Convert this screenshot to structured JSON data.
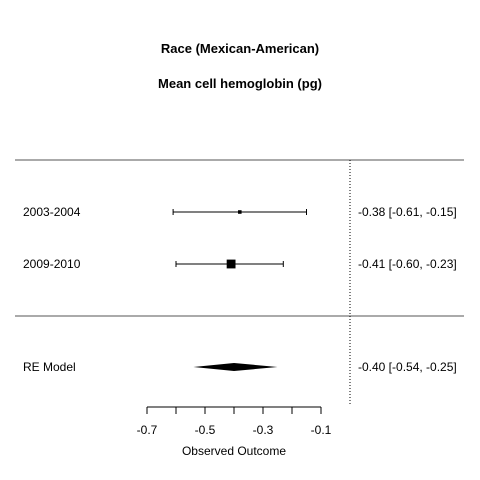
{
  "chart_data": {
    "type": "forest",
    "title": "Race (Mexican-American)",
    "subtitle": "Mean cell hemoglobin (pg)",
    "xlabel": "Observed Outcome",
    "xlim": [
      -0.7,
      -0.1
    ],
    "xticks": [
      -0.7,
      -0.5,
      -0.3,
      -0.1
    ],
    "reference_line": -0.0,
    "studies": [
      {
        "label": "2003-2004",
        "estimate": -0.38,
        "lower": -0.61,
        "upper": -0.15,
        "text": "-0.38 [-0.61, -0.15]",
        "weight": 0.05
      },
      {
        "label": "2009-2010",
        "estimate": -0.41,
        "lower": -0.6,
        "upper": -0.23,
        "text": "-0.41 [-0.60, -0.23]",
        "weight": 0.95
      }
    ],
    "summary": {
      "label": "RE Model",
      "estimate": -0.4,
      "lower": -0.54,
      "upper": -0.25,
      "text": "-0.40 [-0.54, -0.25]"
    }
  }
}
